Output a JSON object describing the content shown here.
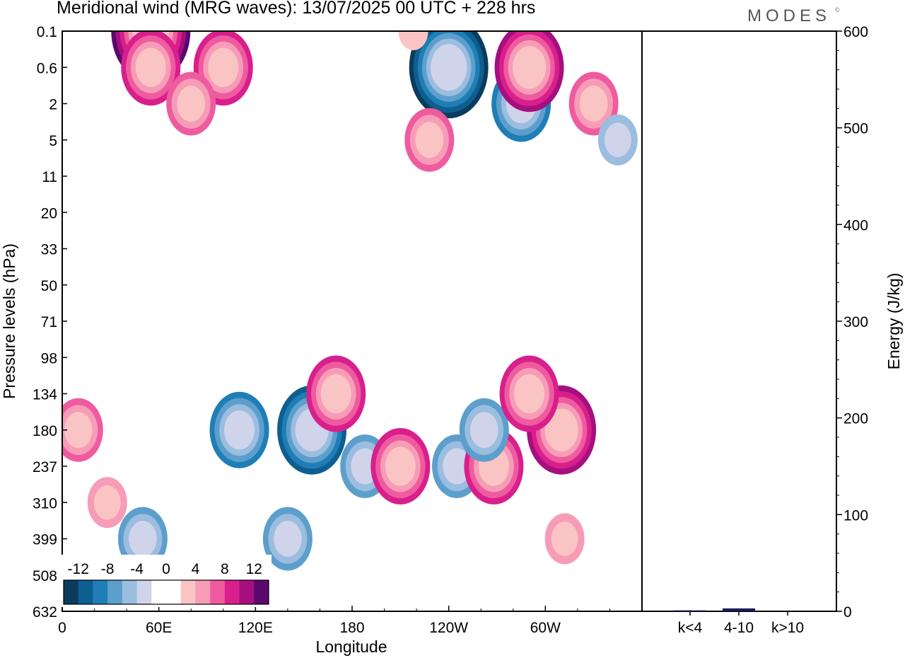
{
  "header": {
    "title": "Meridional wind (MRG waves):  13/07/2025  00 UTC  + 228 hrs",
    "logo": "MODES",
    "logo_mark": "©"
  },
  "chart_data": [
    {
      "type": "heatmap",
      "title": "Meridional wind (MRG waves):  13/07/2025  00 UTC  + 228 hrs",
      "xlabel": "Longitude",
      "ylabel": "Pressure levels (hPa)",
      "x_tick_labels": [
        "0",
        "60E",
        "120E",
        "180",
        "120W",
        "60W"
      ],
      "x_ticks_deg": [
        0,
        60,
        120,
        180,
        240,
        300
      ],
      "xlim_deg": [
        0,
        360
      ],
      "y_tick_labels": [
        "0.1",
        "0.6",
        "2",
        "5",
        "11",
        "20",
        "33",
        "50",
        "71",
        "98",
        "134",
        "180",
        "237",
        "310",
        "399",
        "508",
        "632"
      ],
      "y_axis": "pressure levels, top to bottom 0.1 to 632 hPa",
      "colorbar": {
        "labels": [
          "-12",
          "-8",
          "-4",
          "0",
          "4",
          "8",
          "12"
        ],
        "levels": [
          -14,
          -12,
          -10,
          -8,
          -6,
          -4,
          -2,
          0,
          2,
          4,
          6,
          8,
          10,
          12,
          14
        ],
        "colors": [
          "#0b3c5d",
          "#0e5f8f",
          "#1f7eb6",
          "#5d9fcc",
          "#9bbddf",
          "#cfd4ea",
          "#ffffff",
          "#ffffff",
          "#fbc4c4",
          "#f79cb7",
          "#ee5c9f",
          "#d91f8c",
          "#a50f7f",
          "#5a086d"
        ]
      },
      "contours": [
        {
          "lon": 10,
          "level": 180,
          "value": 6
        },
        {
          "lon": 28,
          "level": 310,
          "value": 4
        },
        {
          "lon": 55,
          "level": 0.1,
          "value": 12
        },
        {
          "lon": 55,
          "level": 0.6,
          "value": 9
        },
        {
          "lon": 50,
          "level": 399,
          "value": -6
        },
        {
          "lon": 100,
          "level": 0.6,
          "value": 9
        },
        {
          "lon": 80,
          "level": 2,
          "value": 6
        },
        {
          "lon": 110,
          "level": 180,
          "value": -8
        },
        {
          "lon": 155,
          "level": 180,
          "value": -11
        },
        {
          "lon": 140,
          "level": 399,
          "value": -7
        },
        {
          "lon": 170,
          "level": 134,
          "value": 8
        },
        {
          "lon": 188,
          "level": 237,
          "value": -7
        },
        {
          "lon": 210,
          "level": 237,
          "value": 9
        },
        {
          "lon": 240,
          "level": 0.6,
          "value": -13
        },
        {
          "lon": 218,
          "level": 0.1,
          "value": 3
        },
        {
          "lon": 228,
          "level": 5,
          "value": 6
        },
        {
          "lon": 245,
          "level": 237,
          "value": -7
        },
        {
          "lon": 268,
          "level": 237,
          "value": 8
        },
        {
          "lon": 262,
          "level": 180,
          "value": -6
        },
        {
          "lon": 285,
          "level": 2,
          "value": -9
        },
        {
          "lon": 290,
          "level": 0.6,
          "value": 10
        },
        {
          "lon": 310,
          "level": 180,
          "value": 11
        },
        {
          "lon": 290,
          "level": 134,
          "value": 9
        },
        {
          "lon": 312,
          "level": 399,
          "value": 5
        },
        {
          "lon": 330,
          "level": 2,
          "value": 6
        },
        {
          "lon": 345,
          "level": 5,
          "value": -4
        }
      ]
    },
    {
      "type": "bar",
      "ylabel": "Energy (J/kg)",
      "categories": [
        "k<4",
        "4-10",
        "k>10"
      ],
      "values": [
        1,
        3,
        0
      ],
      "ylim": [
        0,
        600
      ],
      "y_tick_labels": [
        "0",
        "100",
        "200",
        "300",
        "400",
        "500",
        "600"
      ]
    }
  ]
}
